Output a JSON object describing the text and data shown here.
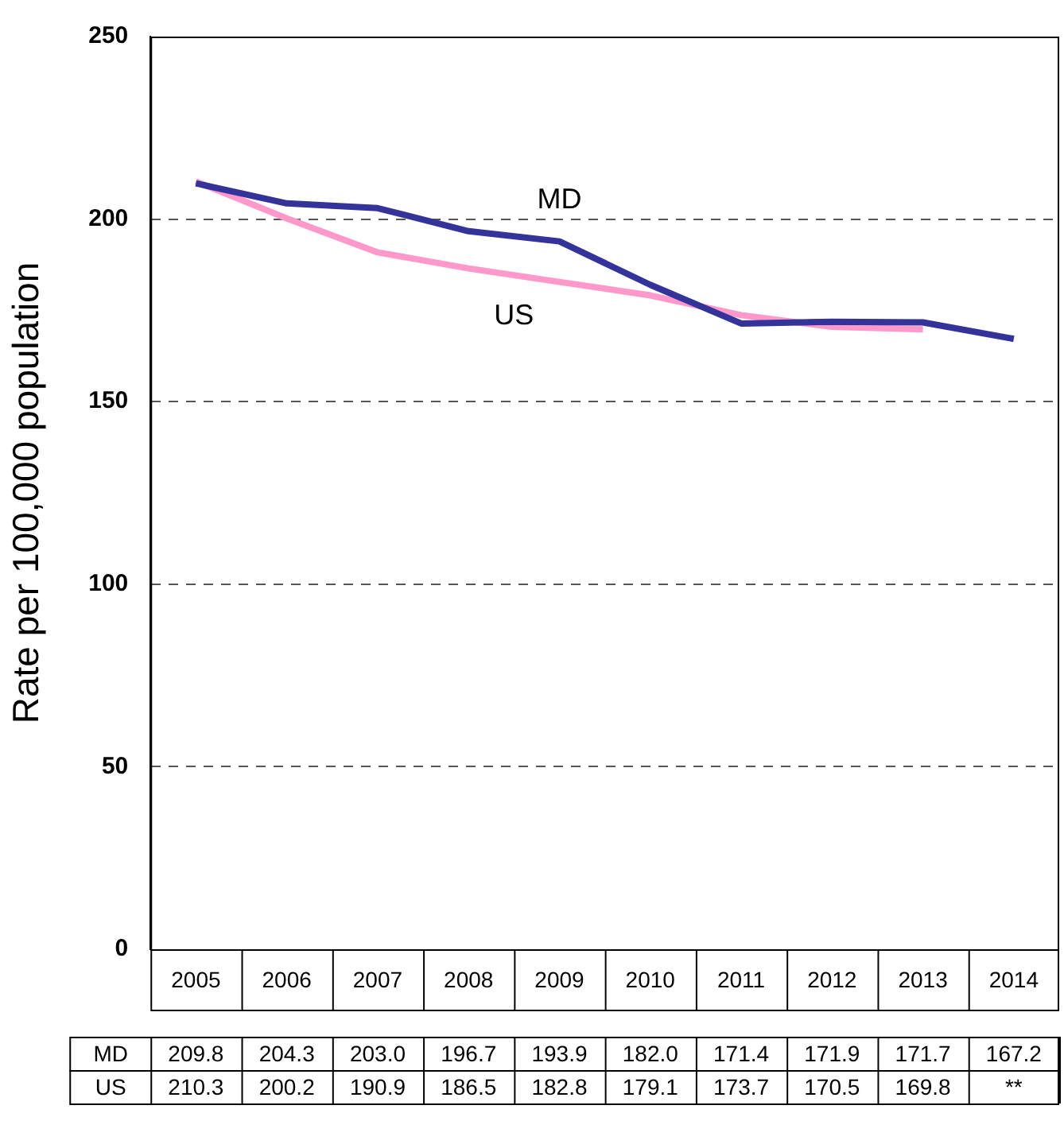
{
  "chart_data": {
    "type": "line",
    "ylabel": "Rate per 100,000 population",
    "categories": [
      "2005",
      "2006",
      "2007",
      "2008",
      "2009",
      "2010",
      "2011",
      "2012",
      "2013",
      "2014"
    ],
    "series": [
      {
        "name": "MD",
        "color": "#333399",
        "values": [
          209.8,
          204.3,
          203.0,
          196.7,
          193.9,
          182.0,
          171.4,
          171.9,
          171.7,
          167.2
        ],
        "value_labels": [
          "209.8",
          "204.3",
          "203.0",
          "196.7",
          "193.9",
          "182.0",
          "171.4",
          "171.9",
          "171.7",
          "167.2"
        ]
      },
      {
        "name": "US",
        "color": "#ff99cc",
        "values": [
          210.3,
          200.2,
          190.9,
          186.5,
          182.8,
          179.1,
          173.7,
          170.5,
          169.8,
          null
        ],
        "value_labels": [
          "210.3",
          "200.2",
          "190.9",
          "186.5",
          "182.8",
          "179.1",
          "173.7",
          "170.5",
          "169.8",
          "**"
        ]
      }
    ],
    "ylim": [
      0,
      250
    ],
    "yticks": [
      0,
      50,
      100,
      150,
      200,
      250
    ],
    "grid": "y",
    "legend": false,
    "marker": "none",
    "line_style": "solid"
  }
}
